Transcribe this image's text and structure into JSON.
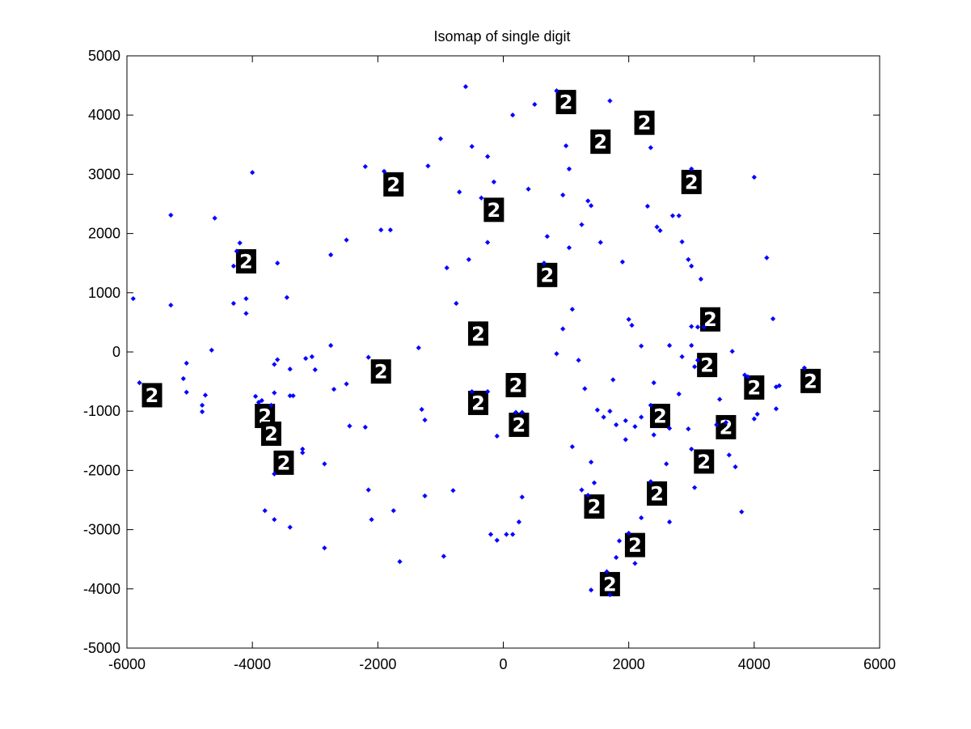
{
  "chart_data": {
    "type": "scatter",
    "title": "Isomap of single digit",
    "xlabel": "",
    "ylabel": "",
    "xlim": [
      -6000,
      6000
    ],
    "ylim": [
      -5000,
      5000
    ],
    "xticks": [
      -6000,
      -4000,
      -2000,
      0,
      2000,
      4000,
      6000
    ],
    "yticks": [
      -5000,
      -4000,
      -3000,
      -2000,
      -1000,
      0,
      1000,
      2000,
      3000,
      4000,
      5000
    ],
    "grid": false,
    "marker_color": "#0000ff",
    "thumbnail_color": "#000000",
    "thumbnail_digit": "2",
    "points": [
      [
        -600,
        4480
      ],
      [
        -1000,
        3600
      ],
      [
        -500,
        3470
      ],
      [
        -1200,
        3140
      ],
      [
        -2200,
        3130
      ],
      [
        -4000,
        3030
      ],
      [
        -5300,
        2310
      ],
      [
        -4600,
        2260
      ],
      [
        -1900,
        3050
      ],
      [
        -1800,
        2060
      ],
      [
        -1950,
        2060
      ],
      [
        -2500,
        1890
      ],
      [
        -2750,
        1640
      ],
      [
        -3600,
        1500
      ],
      [
        -4200,
        1840
      ],
      [
        -4250,
        1700
      ],
      [
        -4300,
        1450
      ],
      [
        -4100,
        900
      ],
      [
        -4300,
        820
      ],
      [
        -5300,
        790
      ],
      [
        -4100,
        650
      ],
      [
        -5900,
        900
      ],
      [
        -3450,
        920
      ],
      [
        -4650,
        30
      ],
      [
        -5050,
        -190
      ],
      [
        -5050,
        -680
      ],
      [
        -5100,
        -450
      ],
      [
        -5800,
        -520
      ],
      [
        -4800,
        -900
      ],
      [
        -4800,
        -1010
      ],
      [
        -4750,
        -730
      ],
      [
        -3650,
        -210
      ],
      [
        -3600,
        -130
      ],
      [
        -3400,
        -290
      ],
      [
        -3150,
        -110
      ],
      [
        -3050,
        -80
      ],
      [
        -3000,
        -300
      ],
      [
        -2750,
        110
      ],
      [
        -2700,
        -630
      ],
      [
        -2500,
        -540
      ],
      [
        -2150,
        -90
      ],
      [
        -3650,
        -690
      ],
      [
        -3700,
        -900
      ],
      [
        -3950,
        -750
      ],
      [
        -3900,
        -850
      ],
      [
        -3850,
        -820
      ],
      [
        -3400,
        -740
      ],
      [
        -3350,
        -740
      ],
      [
        -3200,
        -1640
      ],
      [
        -3200,
        -1700
      ],
      [
        -2850,
        -1890
      ],
      [
        -2450,
        -1250
      ],
      [
        -2200,
        -1270
      ],
      [
        -3650,
        -2060
      ],
      [
        -3800,
        -2680
      ],
      [
        -3650,
        -2830
      ],
      [
        -3400,
        -2960
      ],
      [
        -2850,
        -3310
      ],
      [
        -2150,
        -2330
      ],
      [
        -2100,
        -2830
      ],
      [
        -1750,
        -2680
      ],
      [
        -1650,
        -3540
      ],
      [
        -1300,
        -970
      ],
      [
        -1250,
        -1150
      ],
      [
        -1250,
        -2430
      ],
      [
        -950,
        -3450
      ],
      [
        -800,
        -2340
      ],
      [
        -1350,
        70
      ],
      [
        -900,
        1420
      ],
      [
        -750,
        820
      ],
      [
        -700,
        2700
      ],
      [
        -550,
        1560
      ],
      [
        -350,
        2600
      ],
      [
        -250,
        1850
      ],
      [
        -250,
        3300
      ],
      [
        -150,
        2870
      ],
      [
        -100,
        -1420
      ],
      [
        -500,
        -670
      ],
      [
        -250,
        -670
      ],
      [
        200,
        -1020
      ],
      [
        300,
        -1020
      ],
      [
        300,
        -2450
      ],
      [
        250,
        -2870
      ],
      [
        150,
        -3080
      ],
      [
        -200,
        -3080
      ],
      [
        -100,
        -3180
      ],
      [
        50,
        -3080
      ],
      [
        150,
        4000
      ],
      [
        400,
        2750
      ],
      [
        500,
        4180
      ],
      [
        650,
        1500
      ],
      [
        700,
        1950
      ],
      [
        850,
        4410
      ],
      [
        950,
        2650
      ],
      [
        1000,
        3480
      ],
      [
        1050,
        3090
      ],
      [
        1050,
        1760
      ],
      [
        1100,
        720
      ],
      [
        1250,
        2150
      ],
      [
        1350,
        2550
      ],
      [
        1400,
        2470
      ],
      [
        1300,
        -620
      ],
      [
        1200,
        -140
      ],
      [
        850,
        -30
      ],
      [
        950,
        390
      ],
      [
        1100,
        -1600
      ],
      [
        1250,
        -2330
      ],
      [
        1400,
        -1860
      ],
      [
        1450,
        -2210
      ],
      [
        1350,
        -2420
      ],
      [
        1400,
        -4020
      ],
      [
        1650,
        -3710
      ],
      [
        1700,
        -4100
      ],
      [
        1800,
        -3470
      ],
      [
        1850,
        -3190
      ],
      [
        2000,
        -3060
      ],
      [
        2100,
        -3570
      ],
      [
        2200,
        -2800
      ],
      [
        2350,
        -2190
      ],
      [
        2650,
        -2870
      ],
      [
        1700,
        -1000
      ],
      [
        1750,
        -470
      ],
      [
        1800,
        -1230
      ],
      [
        1950,
        -1480
      ],
      [
        1950,
        -1160
      ],
      [
        1500,
        -980
      ],
      [
        1600,
        -1100
      ],
      [
        1700,
        4240
      ],
      [
        1550,
        1850
      ],
      [
        1900,
        1520
      ],
      [
        2000,
        550
      ],
      [
        2050,
        450
      ],
      [
        2200,
        100
      ],
      [
        2350,
        3450
      ],
      [
        2300,
        2460
      ],
      [
        2450,
        2110
      ],
      [
        2500,
        2050
      ],
      [
        2700,
        2300
      ],
      [
        2800,
        2300
      ],
      [
        2850,
        1860
      ],
      [
        2950,
        1560
      ],
      [
        3000,
        1450
      ],
      [
        3000,
        3090
      ],
      [
        3150,
        1230
      ],
      [
        2650,
        110
      ],
      [
        2850,
        -80
      ],
      [
        3000,
        110
      ],
      [
        3100,
        420
      ],
      [
        3000,
        430
      ],
      [
        3100,
        -140
      ],
      [
        3050,
        -250
      ],
      [
        3200,
        420
      ],
      [
        3400,
        -1230
      ],
      [
        3450,
        -800
      ],
      [
        3550,
        -1190
      ],
      [
        3650,
        10
      ],
      [
        3700,
        -1940
      ],
      [
        3600,
        -1740
      ],
      [
        3800,
        -2700
      ],
      [
        3850,
        -390
      ],
      [
        3900,
        -420
      ],
      [
        4050,
        -1050
      ],
      [
        4000,
        -1130
      ],
      [
        4000,
        2950
      ],
      [
        4200,
        1590
      ],
      [
        4300,
        560
      ],
      [
        4350,
        -960
      ],
      [
        4350,
        -590
      ],
      [
        4400,
        -570
      ],
      [
        4800,
        -270
      ],
      [
        2800,
        -710
      ],
      [
        2650,
        -1290
      ],
      [
        2400,
        -520
      ],
      [
        2350,
        -900
      ],
      [
        2400,
        -1400
      ],
      [
        2600,
        -1890
      ],
      [
        2200,
        -1100
      ],
      [
        2100,
        -1260
      ],
      [
        3050,
        -2290
      ],
      [
        3000,
        -1640
      ],
      [
        2950,
        -1300
      ]
    ],
    "thumbnails": [
      [
        1000,
        4220
      ],
      [
        2250,
        3870
      ],
      [
        1550,
        3550
      ],
      [
        3000,
        2870
      ],
      [
        -1750,
        2830
      ],
      [
        -150,
        2400
      ],
      [
        700,
        1300
      ],
      [
        -4100,
        1530
      ],
      [
        3300,
        550
      ],
      [
        -400,
        310
      ],
      [
        3250,
        -220
      ],
      [
        -1950,
        -330
      ],
      [
        4000,
        -600
      ],
      [
        4900,
        -490
      ],
      [
        200,
        -560
      ],
      [
        -5600,
        -730
      ],
      [
        -400,
        -860
      ],
      [
        -3800,
        -1080
      ],
      [
        250,
        -1230
      ],
      [
        2500,
        -1080
      ],
      [
        3550,
        -1270
      ],
      [
        -3700,
        -1380
      ],
      [
        3200,
        -1850
      ],
      [
        -3500,
        -1870
      ],
      [
        2450,
        -2390
      ],
      [
        1450,
        -2610
      ],
      [
        2100,
        -3260
      ],
      [
        1700,
        -3920
      ]
    ]
  }
}
